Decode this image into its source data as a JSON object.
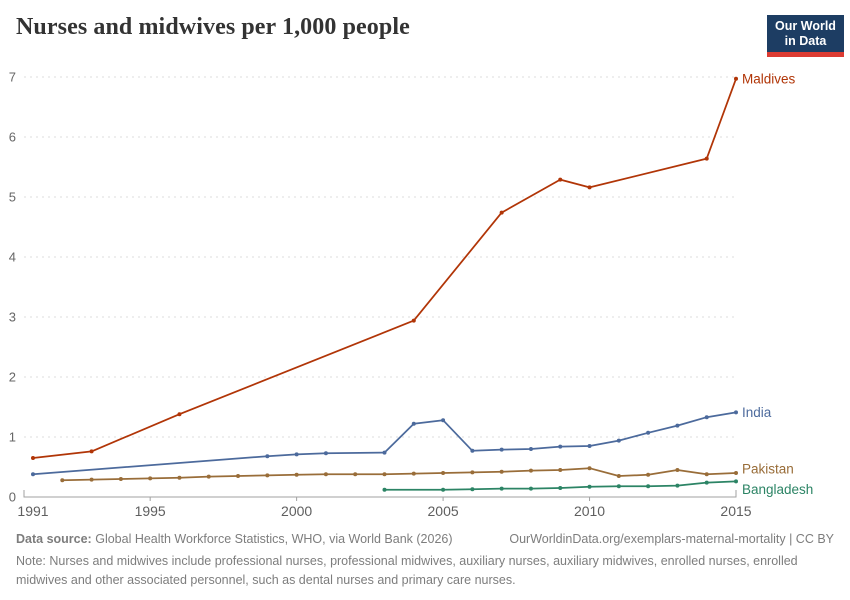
{
  "header": {
    "title": "Nurses and midwives per 1,000 people",
    "logo": {
      "line1": "Our World",
      "line2": "in Data",
      "bg_color": "#1d3d63",
      "accent_color": "#dc3b32"
    }
  },
  "chart_data": {
    "type": "line",
    "title": "Nurses and midwives per 1,000 people",
    "xlabel": "",
    "ylabel": "",
    "xlim": [
      1991,
      2015
    ],
    "ylim": [
      0,
      7
    ],
    "x_ticks": [
      1991,
      1995,
      2000,
      2005,
      2010,
      2015
    ],
    "y_ticks": [
      0,
      1,
      2,
      3,
      4,
      5,
      6,
      7
    ],
    "grid": "horizontal-dashed",
    "legend_position": "line-end-labels-right",
    "colors": {
      "grid": "#dedede",
      "axis": "#a1a1a1",
      "tick_label": "#666666"
    },
    "series": [
      {
        "name": "Maldives",
        "color": "#b13507",
        "label_dy": 0,
        "points": [
          [
            1991,
            0.65
          ],
          [
            1993,
            0.76
          ],
          [
            1996,
            1.38
          ],
          [
            2004,
            2.94
          ],
          [
            2007,
            4.74
          ],
          [
            2009,
            5.29
          ],
          [
            2010,
            5.16
          ],
          [
            2014,
            5.64
          ],
          [
            2015,
            6.97
          ]
        ]
      },
      {
        "name": "India",
        "color": "#4c6a9c",
        "label_dy": 0,
        "points": [
          [
            1991,
            0.38
          ],
          [
            1999,
            0.68
          ],
          [
            2000,
            0.71
          ],
          [
            2001,
            0.73
          ],
          [
            2003,
            0.74
          ],
          [
            2004,
            1.22
          ],
          [
            2005,
            1.28
          ],
          [
            2006,
            0.77
          ],
          [
            2007,
            0.79
          ],
          [
            2008,
            0.8
          ],
          [
            2009,
            0.84
          ],
          [
            2010,
            0.85
          ],
          [
            2011,
            0.94
          ],
          [
            2012,
            1.07
          ],
          [
            2013,
            1.19
          ],
          [
            2014,
            1.33
          ],
          [
            2015,
            1.41
          ]
        ]
      },
      {
        "name": "Pakistan",
        "color": "#996d39",
        "label_dy": -4,
        "points": [
          [
            1992,
            0.28
          ],
          [
            1993,
            0.29
          ],
          [
            1994,
            0.3
          ],
          [
            1995,
            0.31
          ],
          [
            1996,
            0.32
          ],
          [
            1997,
            0.34
          ],
          [
            1998,
            0.35
          ],
          [
            1999,
            0.36
          ],
          [
            2000,
            0.37
          ],
          [
            2001,
            0.38
          ],
          [
            2002,
            0.38
          ],
          [
            2003,
            0.38
          ],
          [
            2004,
            0.39
          ],
          [
            2005,
            0.4
          ],
          [
            2006,
            0.41
          ],
          [
            2007,
            0.42
          ],
          [
            2008,
            0.44
          ],
          [
            2009,
            0.45
          ],
          [
            2010,
            0.48
          ],
          [
            2011,
            0.35
          ],
          [
            2012,
            0.37
          ],
          [
            2013,
            0.45
          ],
          [
            2014,
            0.38
          ],
          [
            2015,
            0.4
          ]
        ]
      },
      {
        "name": "Bangladesh",
        "color": "#2c8465",
        "label_dy": 8,
        "points": [
          [
            2003,
            0.12
          ],
          [
            2005,
            0.12
          ],
          [
            2006,
            0.13
          ],
          [
            2007,
            0.14
          ],
          [
            2008,
            0.14
          ],
          [
            2009,
            0.15
          ],
          [
            2010,
            0.17
          ],
          [
            2011,
            0.18
          ],
          [
            2012,
            0.18
          ],
          [
            2013,
            0.19
          ],
          [
            2014,
            0.24
          ],
          [
            2015,
            0.26
          ]
        ]
      }
    ]
  },
  "footer": {
    "source_label": "Data source:",
    "source_text": "Global Health Workforce Statistics, WHO, via World Bank (2026)",
    "link_text": "OurWorldinData.org/exemplars-maternal-mortality | CC BY",
    "note_label": "Note:",
    "note_text": "Nurses and midwives include professional nurses, professional midwives, auxiliary nurses, auxiliary midwives, enrolled nurses, enrolled midwives and other associated personnel, such as dental nurses and primary care nurses."
  }
}
